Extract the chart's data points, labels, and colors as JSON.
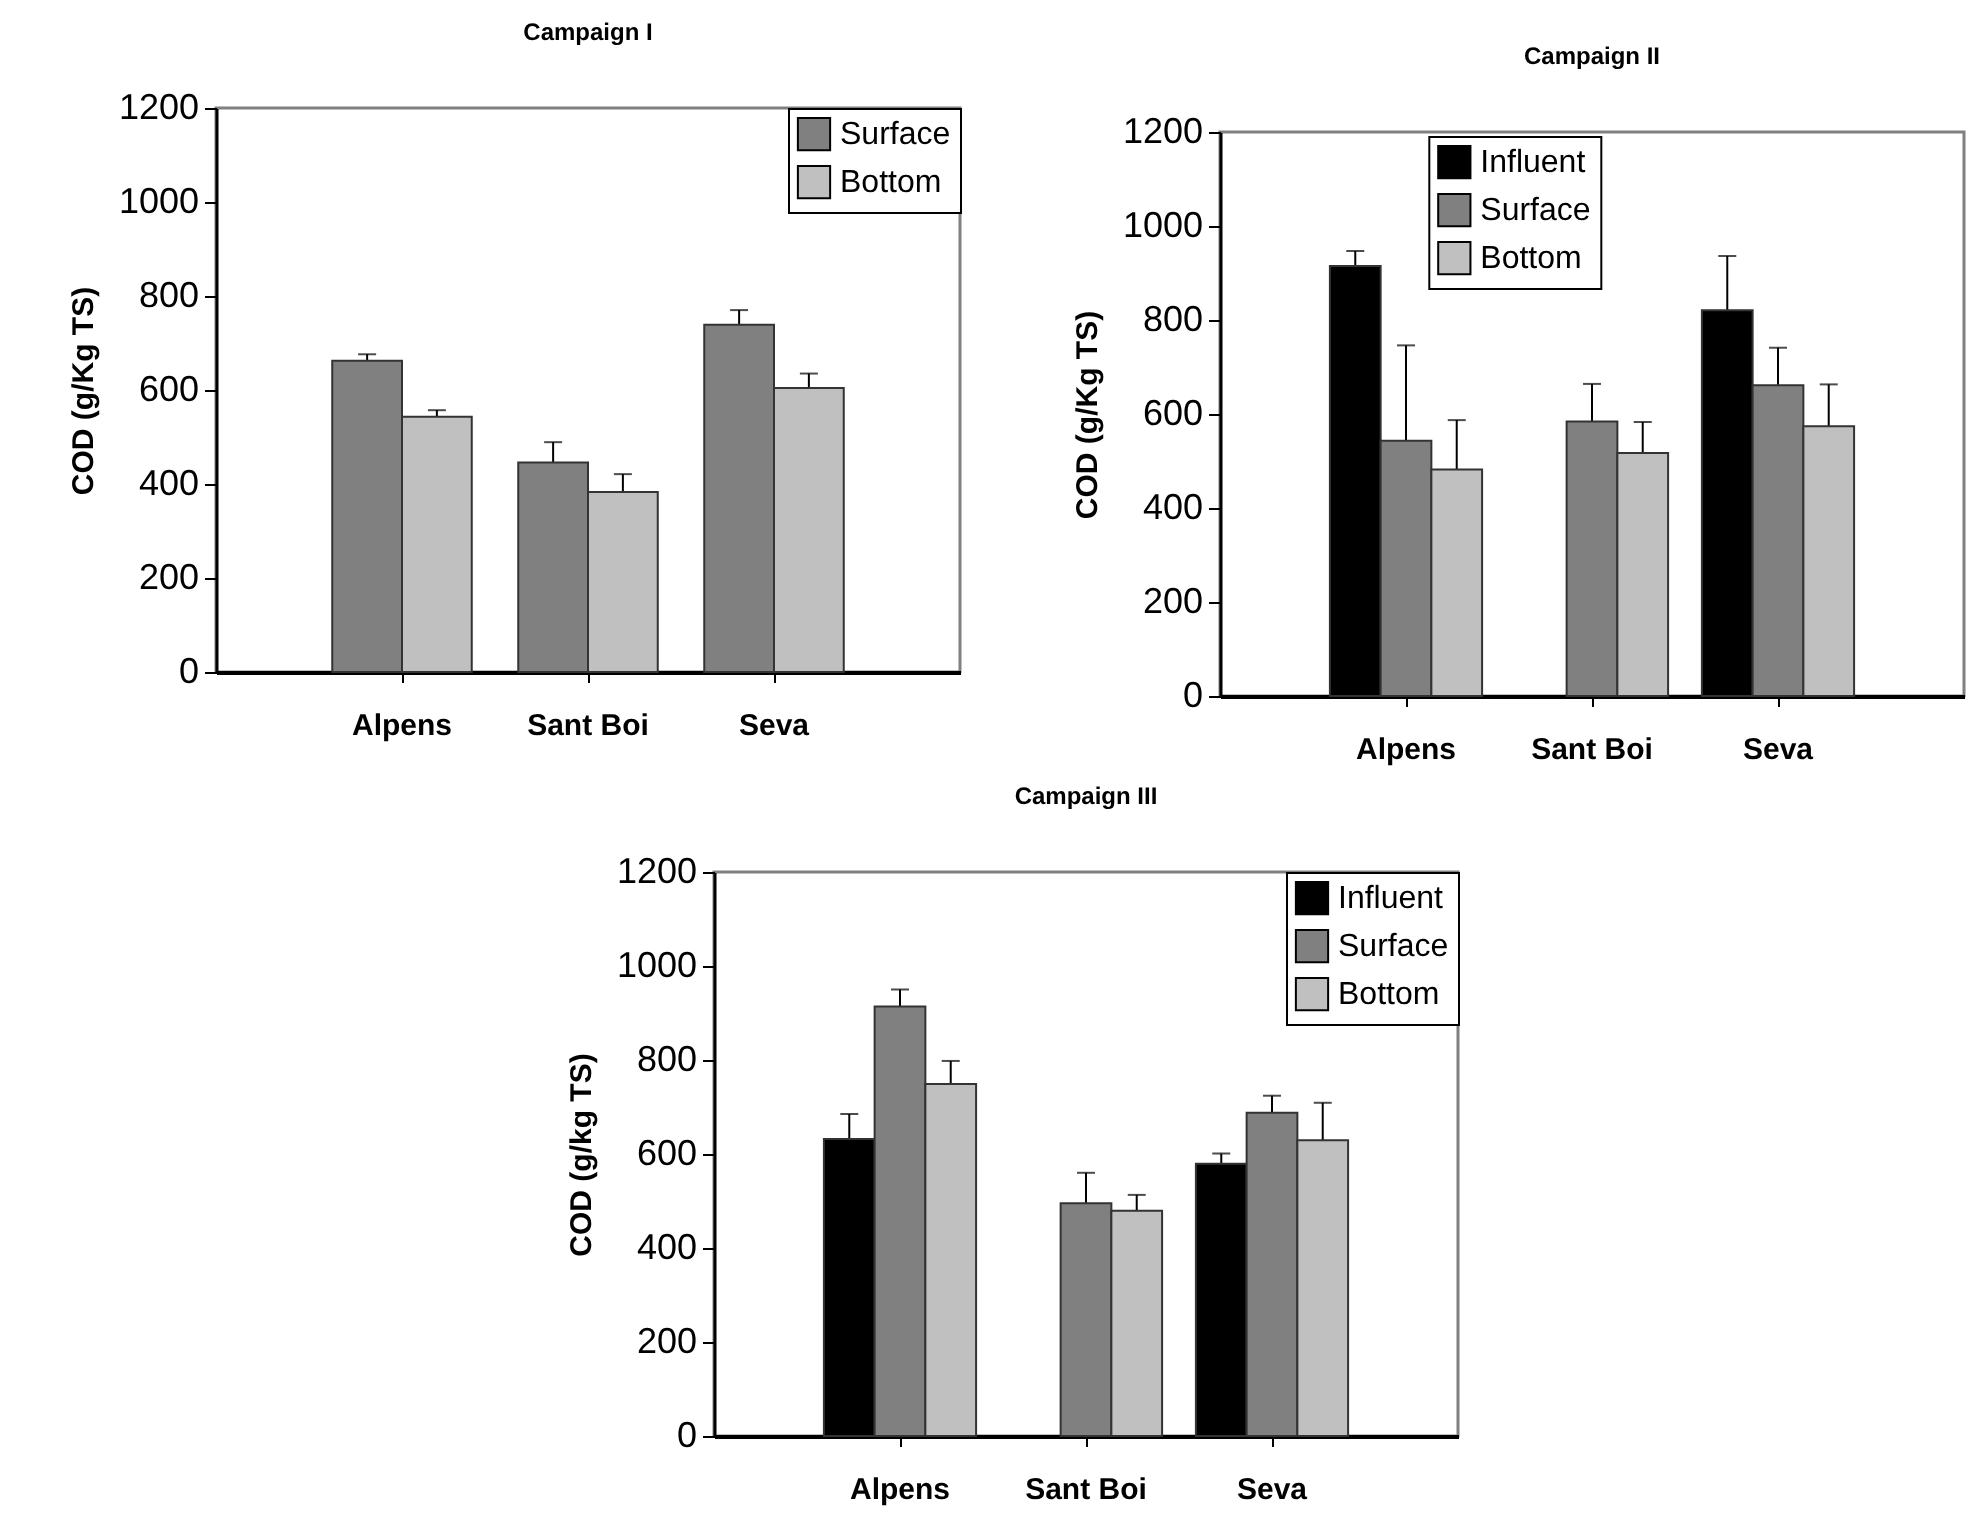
{
  "chart_data": [
    {
      "type": "bar",
      "title": "Campaign I",
      "ylabel": "COD (g/Kg TS)",
      "categories": [
        "Alpens",
        "Sant Boi",
        "Seva"
      ],
      "ylim": [
        0,
        1200
      ],
      "yticks": [
        0,
        200,
        400,
        600,
        800,
        1000,
        1200
      ],
      "legend": "top right",
      "series": [
        {
          "name": "Surface",
          "color": "#808080",
          "values": [
            662,
            446,
            739
          ],
          "errors": [
            14,
            43,
            31
          ]
        },
        {
          "name": "Bottom",
          "color": "#c0c0c0",
          "values": [
            543,
            383,
            604
          ],
          "errors": [
            14,
            38,
            31
          ]
        }
      ]
    },
    {
      "type": "bar",
      "title": "Campaign II",
      "ylabel": "COD (g/Kg TS)",
      "categories": [
        "Alpens",
        "Sant Boi",
        "Seva"
      ],
      "ylim": [
        0,
        1200
      ],
      "yticks": [
        0,
        200,
        400,
        600,
        800,
        1000,
        1200
      ],
      "legend": "top",
      "series": [
        {
          "name": "Influent",
          "color": "#000000",
          "values": [
            915,
            null,
            821
          ],
          "errors": [
            32,
            null,
            115
          ]
        },
        {
          "name": "Surface",
          "color": "#808080",
          "values": [
            543,
            584,
            661
          ],
          "errors": [
            203,
            80,
            80
          ]
        },
        {
          "name": "Bottom",
          "color": "#c0c0c0",
          "values": [
            482,
            517,
            574
          ],
          "errors": [
            105,
            66,
            89
          ]
        }
      ]
    },
    {
      "type": "bar",
      "title": "Campaign III",
      "ylabel": "COD (g/kg TS)",
      "categories": [
        "Alpens",
        "Sant Boi",
        "Seva"
      ],
      "ylim": [
        0,
        1200
      ],
      "yticks": [
        0,
        200,
        400,
        600,
        800,
        1000,
        1200
      ],
      "legend": "top right",
      "series": [
        {
          "name": "Influent",
          "color": "#000000",
          "values": [
            632,
            null,
            579
          ],
          "errors": [
            53,
            null,
            22
          ]
        },
        {
          "name": "Surface",
          "color": "#808080",
          "values": [
            914,
            495,
            688
          ],
          "errors": [
            36,
            65,
            36
          ]
        },
        {
          "name": "Bottom",
          "color": "#c0c0c0",
          "values": [
            749,
            479,
            629
          ],
          "errors": [
            49,
            34,
            80
          ]
        }
      ]
    }
  ]
}
